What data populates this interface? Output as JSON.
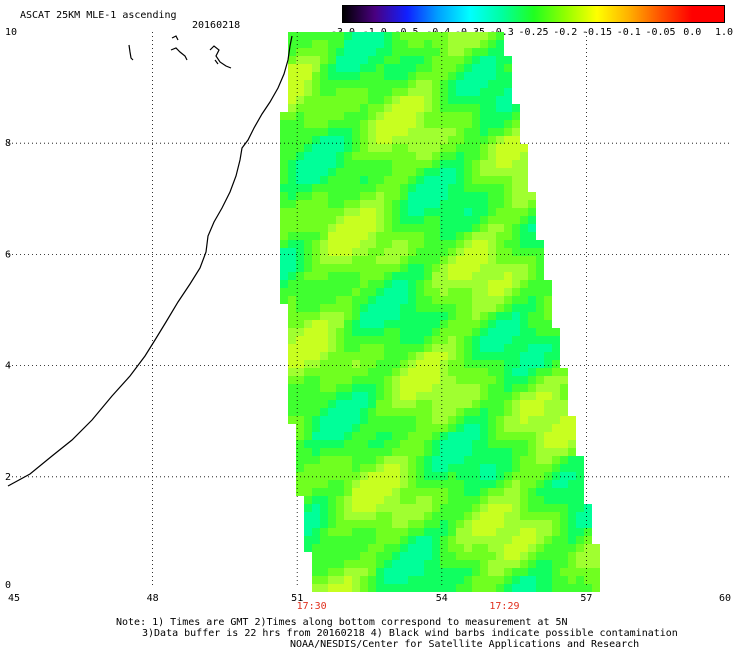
{
  "title": "ASCAT 25KM MLE-1 ascending",
  "date": "20160218",
  "colorbar": {
    "labels": [
      "-3.0",
      "-1.0",
      "-0.5",
      "-0.4",
      "-0.35",
      "-0.3",
      "-0.25",
      "-0.2",
      "-0.15",
      "-0.1",
      "-0.05",
      "0.0",
      "1.0"
    ],
    "colors": [
      "#000000",
      "#4a0080",
      "#1020ff",
      "#00a0ff",
      "#00ffff",
      "#00ffa0",
      "#20ff20",
      "#90ff00",
      "#ffff00",
      "#ffb000",
      "#ff5000",
      "#ff0000"
    ]
  },
  "map": {
    "lon_ticks": [
      "45",
      "48",
      "51",
      "54",
      "57",
      "60"
    ],
    "lat_ticks": [
      "0",
      "2",
      "4",
      "6",
      "8",
      "10"
    ],
    "lon_range": [
      45,
      60
    ],
    "lat_range": [
      0,
      10
    ],
    "times": [
      {
        "label": "17:30",
        "lon": 51.3
      },
      {
        "label": "17:29",
        "lon": 55.3
      }
    ]
  },
  "notes": {
    "line1": "Note: 1) Times are GMT 2)Times along bottom correspond to measurement at 5N",
    "line2": "3)Data buffer is 22 hrs from 20160218 4) Black wind barbs indicate possible contamination",
    "line3": "NOAA/NESDIS/Center for Satellite Applications and Research"
  }
}
